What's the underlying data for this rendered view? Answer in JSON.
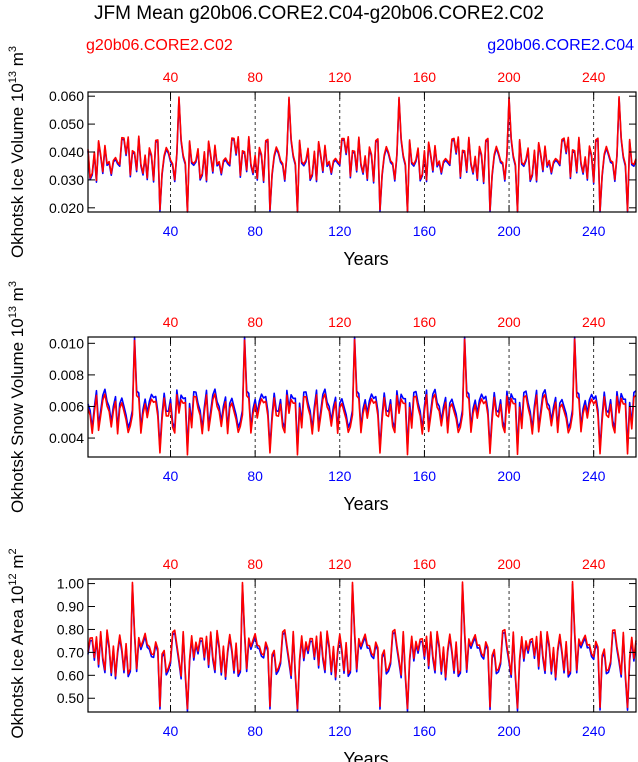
{
  "title": "JFM Mean g20b06.CORE2.C04-g20b06.CORE2.C02",
  "colors": {
    "red": "#ff0000",
    "blue": "#0000ff",
    "axis": "#000000"
  },
  "legend": {
    "left_label": "g20b06.CORE2.C02",
    "right_label": "g20b06.CORE2.C04"
  },
  "chart_data": [
    {
      "type": "line",
      "ylabel_base": "Okhotsk Ice Volume 10",
      "ylabel_exp": "13",
      "ylabel_unit": " m",
      "ylabel_unit_exp": "3",
      "xlabel": "Years",
      "xlim": [
        1,
        260
      ],
      "ylim": [
        0.0185,
        0.0615
      ],
      "yticks": [
        0.02,
        0.03,
        0.04,
        0.05,
        0.06
      ],
      "ytick_labels": [
        "0.020",
        "0.030",
        "0.040",
        "0.050",
        "0.060"
      ],
      "xticks": [
        40,
        80,
        120,
        160,
        200,
        240
      ],
      "xtick_labels": [
        "40",
        "80",
        "120",
        "160",
        "200",
        "240"
      ],
      "pattern": {
        "start": 1,
        "length": 52,
        "repeats": 5,
        "base": 0.037,
        "amp": 0.011,
        "spike_offset": 43,
        "spike": 0.06,
        "low": 0.019
      },
      "series": [
        {
          "name": "g20b06.CORE2.C04",
          "color": "blue",
          "offset": -0.0006
        },
        {
          "name": "g20b06.CORE2.C02",
          "color": "red",
          "offset": 0.0
        }
      ]
    },
    {
      "type": "line",
      "ylabel_base": "Okhotsk Snow Volume 10",
      "ylabel_exp": "13",
      "ylabel_unit": " m",
      "ylabel_unit_exp": "3",
      "xlabel": "Years",
      "xlim": [
        1,
        260
      ],
      "ylim": [
        0.0028,
        0.0104
      ],
      "yticks": [
        0.004,
        0.006,
        0.008,
        0.01
      ],
      "ytick_labels": [
        "0.004",
        "0.006",
        "0.008",
        "0.010"
      ],
      "xticks": [
        40,
        80,
        120,
        160,
        200,
        240
      ],
      "xtick_labels": [
        "40",
        "80",
        "120",
        "160",
        "200",
        "240"
      ],
      "pattern": {
        "start": 1,
        "length": 52,
        "repeats": 5,
        "base": 0.0055,
        "amp": 0.0016,
        "spike_offset": 22,
        "spike": 0.0102,
        "low": 0.003
      },
      "series": [
        {
          "name": "g20b06.CORE2.C04",
          "color": "blue",
          "offset": 0.0003
        },
        {
          "name": "g20b06.CORE2.C02",
          "color": "red",
          "offset": 0.0
        }
      ]
    },
    {
      "type": "line",
      "ylabel_base": "Okhotsk Ice Area 10",
      "ylabel_exp": "12",
      "ylabel_unit": " m",
      "ylabel_unit_exp": "2",
      "xlabel": "Years",
      "xlim": [
        1,
        260
      ],
      "ylim": [
        0.44,
        1.02
      ],
      "yticks": [
        0.5,
        0.6,
        0.7,
        0.8,
        0.9,
        1.0
      ],
      "ytick_labels": [
        "0.50",
        "0.60",
        "0.70",
        "0.80",
        "0.90",
        "1.00"
      ],
      "xticks": [
        40,
        80,
        120,
        160,
        200,
        240
      ],
      "xtick_labels": [
        "40",
        "80",
        "120",
        "160",
        "200",
        "240"
      ],
      "pattern": {
        "start": 1,
        "length": 52,
        "repeats": 5,
        "base": 0.69,
        "amp": 0.14,
        "spike_offset": 21,
        "spike": 1.01,
        "low": 0.46
      },
      "series": [
        {
          "name": "g20b06.CORE2.C04",
          "color": "blue",
          "offset": -0.012
        },
        {
          "name": "g20b06.CORE2.C02",
          "color": "red",
          "offset": 0.0
        }
      ]
    }
  ]
}
